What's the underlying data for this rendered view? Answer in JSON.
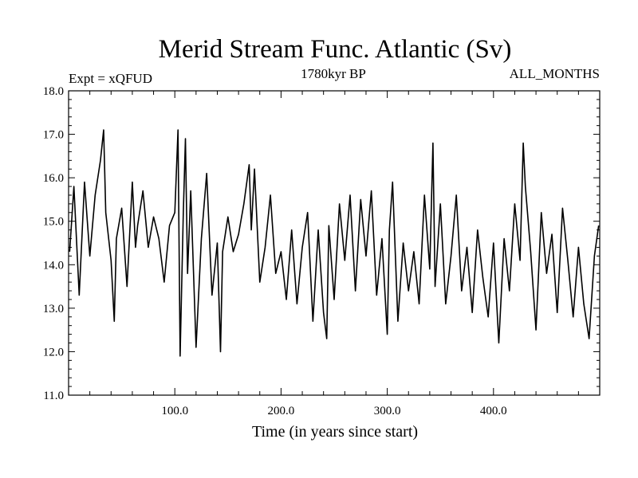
{
  "chart_data": {
    "type": "line",
    "title": "Merid Stream Func. Atlantic (Sv)",
    "subtitle_left": "Expt = xQFUD",
    "subtitle_center": "1780kyr BP",
    "subtitle_right": "ALL_MONTHS",
    "xlabel": "Time (in years since start)",
    "ylabel": "",
    "xlim": [
      0,
      500
    ],
    "ylim": [
      11.0,
      18.0
    ],
    "xticks": [
      100,
      200,
      300,
      400
    ],
    "xtick_labels": [
      "100.0",
      "200.0",
      "300.0",
      "400.0"
    ],
    "yticks": [
      11,
      12,
      13,
      14,
      15,
      16,
      17,
      18
    ],
    "ytick_labels": [
      "11.0",
      "12.0",
      "13.0",
      "14.0",
      "15.0",
      "16.0",
      "17.0",
      "18.0"
    ],
    "grid": false,
    "line_color": "#000000",
    "series": [
      {
        "name": "Merid Stream Func. Atlantic",
        "x": [
          1,
          5,
          10,
          15,
          20,
          25,
          30,
          33,
          35,
          40,
          43,
          45,
          50,
          55,
          60,
          63,
          65,
          70,
          75,
          80,
          85,
          90,
          95,
          100,
          103,
          105,
          108,
          110,
          112,
          115,
          120,
          125,
          130,
          135,
          140,
          143,
          145,
          150,
          155,
          160,
          165,
          170,
          172,
          175,
          180,
          185,
          190,
          195,
          200,
          205,
          210,
          215,
          220,
          225,
          230,
          235,
          240,
          243,
          245,
          250,
          255,
          260,
          265,
          270,
          275,
          280,
          285,
          290,
          295,
          300,
          302,
          305,
          310,
          315,
          320,
          325,
          330,
          335,
          340,
          343,
          345,
          350,
          355,
          360,
          365,
          370,
          375,
          380,
          385,
          390,
          395,
          400,
          405,
          410,
          415,
          420,
          425,
          428,
          430,
          435,
          440,
          445,
          450,
          455,
          460,
          465,
          470,
          475,
          480,
          485,
          490,
          495,
          499
        ],
        "values": [
          14.3,
          15.8,
          13.3,
          15.9,
          14.2,
          15.6,
          16.4,
          17.1,
          15.2,
          14.1,
          12.7,
          14.6,
          15.3,
          13.5,
          15.9,
          14.4,
          14.9,
          15.7,
          14.4,
          15.1,
          14.6,
          13.6,
          14.9,
          15.2,
          17.1,
          11.9,
          15.2,
          16.9,
          13.8,
          15.7,
          12.1,
          14.6,
          16.1,
          13.3,
          14.5,
          12.0,
          14.3,
          15.1,
          14.3,
          14.7,
          15.4,
          16.3,
          14.8,
          16.2,
          13.6,
          14.4,
          15.6,
          13.8,
          14.3,
          13.2,
          14.8,
          13.1,
          14.4,
          15.2,
          12.7,
          14.8,
          12.9,
          12.3,
          14.9,
          13.2,
          15.4,
          14.1,
          15.6,
          13.4,
          15.5,
          14.2,
          15.7,
          13.3,
          14.6,
          12.4,
          14.8,
          15.9,
          12.7,
          14.5,
          13.4,
          14.3,
          13.1,
          15.6,
          13.9,
          16.8,
          13.5,
          15.4,
          13.1,
          14.2,
          15.6,
          13.4,
          14.4,
          12.9,
          14.8,
          13.7,
          12.8,
          14.5,
          12.2,
          14.6,
          13.4,
          15.4,
          14.1,
          16.8,
          15.8,
          14.3,
          12.5,
          15.2,
          13.8,
          14.7,
          12.9,
          15.3,
          14.1,
          12.8,
          14.4,
          13.1,
          12.3,
          14.2,
          14.9
        ]
      }
    ]
  }
}
